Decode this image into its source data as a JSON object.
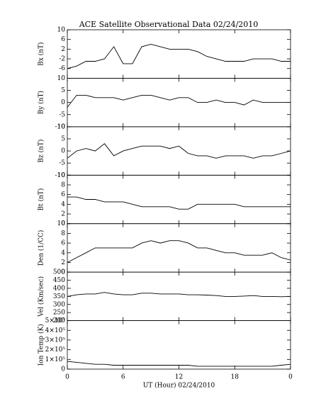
{
  "chart_data": [
    {
      "type": "line",
      "title": "ACE Satellite Observational Data   02/24/2010",
      "y_label": "Bx (nT)",
      "ylim": [
        -10,
        10
      ],
      "yticks": [
        -6,
        -2,
        2,
        6,
        10
      ],
      "color": "#000000",
      "x": [
        0,
        1,
        2,
        3,
        4,
        5,
        6,
        7,
        8,
        9,
        10,
        11,
        12,
        13,
        14,
        15,
        16,
        17,
        18,
        19,
        20,
        21,
        22,
        23,
        24
      ],
      "values": [
        -6,
        -5,
        -3,
        -3,
        -2,
        3,
        -4,
        -4,
        3,
        4,
        3,
        2,
        2,
        2,
        1,
        -1,
        -2,
        -3,
        -3,
        -3,
        -2,
        -2,
        -2,
        -3,
        -3
      ]
    },
    {
      "type": "line",
      "y_label": "By (nT)",
      "ylim": [
        -10,
        10
      ],
      "yticks": [
        -10,
        -5,
        0,
        5,
        10
      ],
      "color": "#000000",
      "x": [
        0,
        1,
        2,
        3,
        4,
        5,
        6,
        7,
        8,
        9,
        10,
        11,
        12,
        13,
        14,
        15,
        16,
        17,
        18,
        19,
        20,
        21,
        22,
        23,
        24
      ],
      "values": [
        -2,
        3,
        3,
        2,
        2,
        2,
        1,
        2,
        3,
        3,
        2,
        1,
        2,
        2,
        0,
        0,
        1,
        0,
        0,
        -1,
        1,
        0,
        0,
        0,
        0
      ]
    },
    {
      "type": "line",
      "y_label": "Bz (nT)",
      "ylim": [
        -10,
        10
      ],
      "yticks": [
        -10,
        -5,
        0,
        5,
        10
      ],
      "color": "#000000",
      "x": [
        0,
        1,
        2,
        3,
        4,
        5,
        6,
        7,
        8,
        9,
        10,
        11,
        12,
        13,
        14,
        15,
        16,
        17,
        18,
        19,
        20,
        21,
        22,
        23,
        24
      ],
      "values": [
        -3,
        0,
        1,
        0,
        3,
        -2,
        0,
        1,
        2,
        2,
        2,
        1,
        2,
        -1,
        -2,
        -2,
        -3,
        -2,
        -2,
        -2,
        -3,
        -2,
        -2,
        -1,
        0
      ]
    },
    {
      "type": "line",
      "y_label": "Bt (nT)",
      "ylim": [
        0,
        10
      ],
      "yticks": [
        0,
        2,
        4,
        6,
        8,
        10
      ],
      "color": "#000000",
      "x": [
        0,
        1,
        2,
        3,
        4,
        5,
        6,
        7,
        8,
        9,
        10,
        11,
        12,
        13,
        14,
        15,
        16,
        17,
        18,
        19,
        20,
        21,
        22,
        23,
        24
      ],
      "values": [
        5.5,
        5.5,
        5,
        5,
        4.5,
        4.5,
        4.5,
        4,
        3.5,
        3.5,
        3.5,
        3.5,
        3,
        3,
        4,
        4,
        4,
        4,
        4,
        3.5,
        3.5,
        3.5,
        3.5,
        3.5,
        3.5
      ]
    },
    {
      "type": "line",
      "y_label": "Den (1/CC)",
      "ylim": [
        0,
        10
      ],
      "yticks": [
        0,
        2,
        4,
        6,
        8,
        10
      ],
      "color": "#000000",
      "x": [
        0,
        1,
        2,
        3,
        4,
        5,
        6,
        7,
        8,
        9,
        10,
        11,
        12,
        13,
        14,
        15,
        16,
        17,
        18,
        19,
        20,
        21,
        22,
        23,
        24
      ],
      "values": [
        2,
        3,
        4,
        5,
        5,
        5,
        5,
        5,
        6,
        6.5,
        6,
        6.5,
        6.5,
        6,
        5,
        5,
        4.5,
        4,
        4,
        3.5,
        3.5,
        3.5,
        4,
        3,
        2.5
      ]
    },
    {
      "type": "line",
      "y_label": "Vel (Km/sec)",
      "ylim": [
        200,
        500
      ],
      "yticks": [
        200,
        250,
        300,
        350,
        400,
        450,
        500
      ],
      "color": "#000000",
      "x": [
        0,
        1,
        2,
        3,
        4,
        5,
        6,
        7,
        8,
        9,
        10,
        11,
        12,
        13,
        14,
        15,
        16,
        17,
        18,
        19,
        20,
        21,
        22,
        23,
        24
      ],
      "values": [
        350,
        360,
        365,
        365,
        375,
        365,
        360,
        360,
        370,
        370,
        365,
        365,
        365,
        360,
        360,
        358,
        355,
        350,
        350,
        352,
        355,
        350,
        350,
        348,
        350
      ]
    },
    {
      "type": "line",
      "y_label": "Ion Temp (K)",
      "ylim": [
        0,
        500000
      ],
      "yticks": [
        0,
        {
          "value": 100000,
          "label": "1×10⁵"
        },
        {
          "value": 200000,
          "label": "2×10⁵"
        },
        {
          "value": 300000,
          "label": "3×10⁵"
        },
        {
          "value": 400000,
          "label": "4×10⁵"
        },
        {
          "value": 500000,
          "label": "5×10⁵"
        }
      ],
      "color": "#000000",
      "x": [
        0,
        1,
        2,
        3,
        4,
        5,
        6,
        7,
        8,
        9,
        10,
        11,
        12,
        13,
        14,
        15,
        16,
        17,
        18,
        19,
        20,
        21,
        22,
        23,
        24
      ],
      "values": [
        80000,
        70000,
        60000,
        50000,
        50000,
        40000,
        40000,
        40000,
        40000,
        40000,
        40000,
        40000,
        40000,
        40000,
        30000,
        30000,
        30000,
        30000,
        30000,
        30000,
        30000,
        30000,
        30000,
        40000,
        50000
      ],
      "x_label": "UT (Hour)  02/24/2010",
      "xlim": [
        0,
        24
      ],
      "xticks": [
        0,
        6,
        12,
        18,
        {
          "value": 24,
          "label": "0"
        }
      ]
    }
  ]
}
